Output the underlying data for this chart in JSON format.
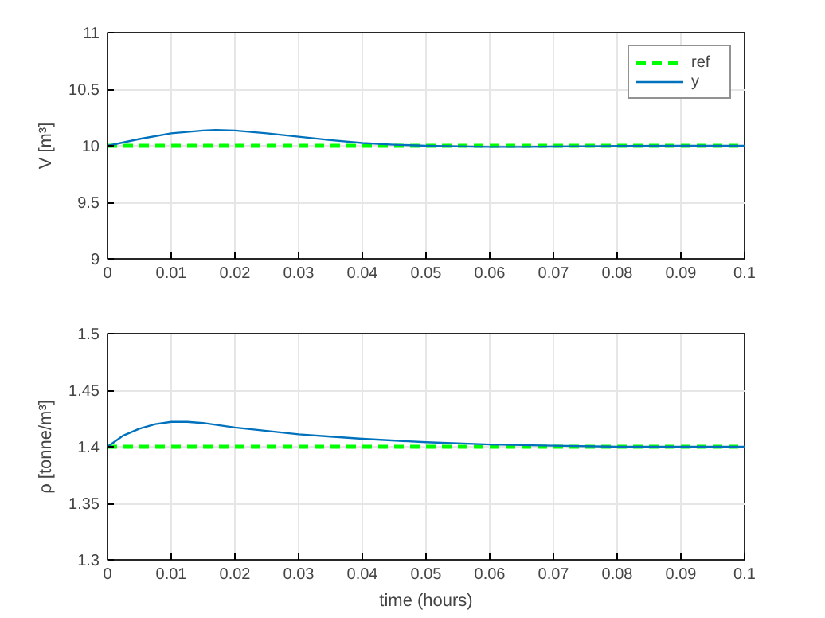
{
  "chart_data": [
    {
      "type": "line",
      "ylabel": "V [m³]",
      "xlim": [
        0,
        0.1
      ],
      "ylim": [
        9,
        11
      ],
      "xticks": [
        0,
        0.01,
        0.02,
        0.03,
        0.04,
        0.05,
        0.06,
        0.07,
        0.08,
        0.09,
        0.1
      ],
      "yticks": [
        9,
        9.5,
        10,
        10.5,
        11
      ],
      "grid": true,
      "legend": "top right",
      "series": [
        {
          "name": "ref",
          "color": "#00ff00",
          "line_style": "dashed",
          "x": [
            0,
            0.1
          ],
          "values": [
            10,
            10
          ]
        },
        {
          "name": "y",
          "color": "#0072bd",
          "line_style": "solid",
          "x": [
            0,
            0.005,
            0.01,
            0.015,
            0.017,
            0.02,
            0.025,
            0.03,
            0.035,
            0.04,
            0.045,
            0.05,
            0.055,
            0.06,
            0.065,
            0.07,
            0.08,
            0.09,
            0.1
          ],
          "values": [
            10,
            10.06,
            10.11,
            10.135,
            10.14,
            10.135,
            10.11,
            10.08,
            10.05,
            10.025,
            10.01,
            10.0,
            9.995,
            9.99,
            9.99,
            9.993,
            9.998,
            10.0,
            10.0
          ]
        }
      ]
    },
    {
      "type": "line",
      "ylabel": "ρ [tonne/m³]",
      "xlabel": "time (hours)",
      "xlim": [
        0,
        0.1
      ],
      "ylim": [
        1.3,
        1.5
      ],
      "xticks": [
        0,
        0.01,
        0.02,
        0.03,
        0.04,
        0.05,
        0.06,
        0.07,
        0.08,
        0.09,
        0.1
      ],
      "yticks": [
        1.3,
        1.35,
        1.4,
        1.45,
        1.5
      ],
      "grid": true,
      "series": [
        {
          "color": "#00ff00",
          "line_style": "dashed",
          "x": [
            0,
            0.1
          ],
          "values": [
            1.4,
            1.4
          ]
        },
        {
          "color": "#0072bd",
          "line_style": "solid",
          "x": [
            0,
            0.0025,
            0.005,
            0.0075,
            0.01,
            0.0125,
            0.015,
            0.02,
            0.025,
            0.03,
            0.035,
            0.04,
            0.05,
            0.06,
            0.07,
            0.08,
            0.09,
            0.1
          ],
          "values": [
            1.4,
            1.41,
            1.416,
            1.42,
            1.422,
            1.422,
            1.421,
            1.417,
            1.414,
            1.411,
            1.409,
            1.407,
            1.404,
            1.402,
            1.401,
            1.4,
            1.4,
            1.4
          ]
        }
      ]
    }
  ]
}
